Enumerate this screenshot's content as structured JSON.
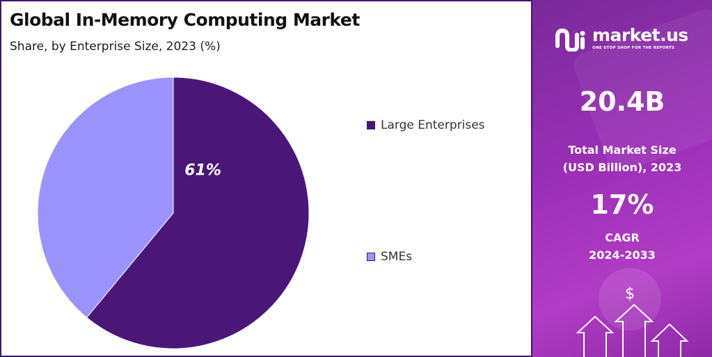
{
  "chart_data": {
    "type": "pie",
    "title": "Global In-Memory Computing Market",
    "subtitle": "Share, by Enterprise Size, 2023 (%)",
    "categories": [
      "Large Enterprises",
      "SMEs"
    ],
    "values": [
      61,
      39
    ],
    "colors": [
      "#4a1779",
      "#9b93fd"
    ],
    "data_labels": [
      "61%",
      ""
    ],
    "legend_position": "right"
  },
  "side_panel": {
    "brand_name": "market.us",
    "brand_tagline": "ONE STOP SHOP FOR THE REPORTS",
    "market_size_value": "20.4B",
    "market_size_label_line1": "Total Market Size",
    "market_size_label_line2": "(USD Billion), 2023",
    "cagr_value": "17%",
    "cagr_label_line1": "CAGR",
    "cagr_label_line2": "2024-2033",
    "dollar_symbol": "$",
    "icons": [
      "market-us-logo-icon",
      "up-arrow-icon"
    ]
  }
}
